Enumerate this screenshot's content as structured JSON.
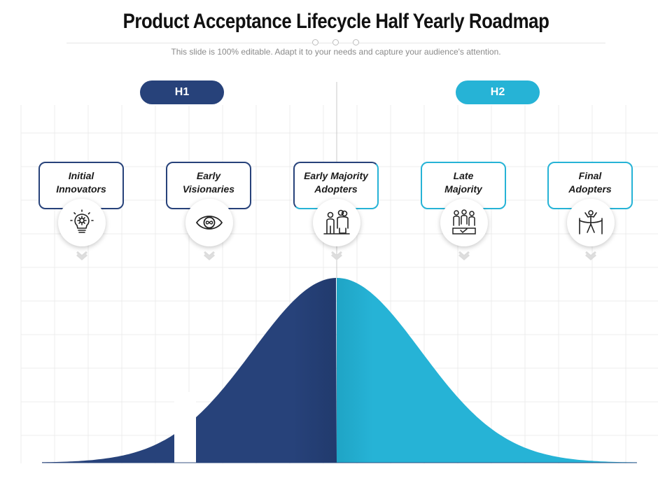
{
  "title": "Product Acceptance Lifecycle Half Yearly Roadmap",
  "subtitle": "This slide is 100% editable. Adapt it to your needs and capture your audience's attention.",
  "halves": [
    {
      "label": "H1",
      "color": "#27427a"
    },
    {
      "label": "H2",
      "color": "#26b3d6"
    }
  ],
  "stages": [
    {
      "label": "Initial\nInnovators",
      "icon": "lightbulb-gear-icon",
      "half": "H1"
    },
    {
      "label": "Early\nVisionaries",
      "icon": "eye-infinity-icon",
      "half": "H1"
    },
    {
      "label": "Early Majority\nAdopters",
      "icon": "people-group-icon",
      "half": "H1/H2"
    },
    {
      "label": "Late\nMajority",
      "icon": "voting-crowd-icon",
      "half": "H2"
    },
    {
      "label": "Final\nAdopters",
      "icon": "finish-line-icon",
      "half": "H2"
    }
  ],
  "colors": {
    "dark": "#27427a",
    "light": "#26b3d6",
    "grid": "#ececec"
  }
}
